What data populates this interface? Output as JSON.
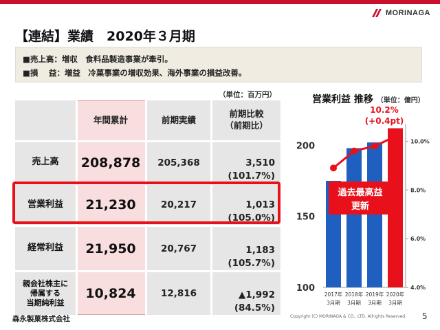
{
  "brand": {
    "logo_text": "MORINAGA",
    "accent_color": "#c8102e"
  },
  "slide": {
    "title": "【連結】業績　2020年３月期",
    "summary": [
      "■売上高：増収　食料品製造事業が牽引。",
      "■損　 益：増益　冷菓事業の増収効果、海外事業の損益改善。"
    ],
    "unit_label": "（単位：百万円）",
    "page_number": "5"
  },
  "table": {
    "headers": {
      "annual": "年間累計",
      "prev": "前期実績",
      "compare_line1": "前期比較",
      "compare_line2": "（前期比）"
    },
    "rows": [
      {
        "label": "売上高",
        "annual": "208,878",
        "prev": "205,368",
        "diff": "3,510",
        "ratio": "(101.7%)"
      },
      {
        "label": "営業利益",
        "annual": "21,230",
        "prev": "20,217",
        "diff": "1,013",
        "ratio": "(105.0%)"
      },
      {
        "label": "経常利益",
        "annual": "21,950",
        "prev": "20,767",
        "diff": "1,183",
        "ratio": "(105.7%)"
      },
      {
        "label_lines": [
          "親会社株主に",
          "帰属する",
          "当期純利益"
        ],
        "annual": "10,824",
        "prev": "12,816",
        "diff": "▲1,992",
        "ratio": "(84.5%)"
      }
    ]
  },
  "chart": {
    "title": "営業利益 推移",
    "unit": "（単位：億円）",
    "annotation_value": "10.2%",
    "annotation_delta": "(+0.4pt)",
    "banner_line1": "過去最高益",
    "banner_line2": "更新"
  },
  "chart_data": {
    "type": "bar",
    "categories": [
      [
        "2017年",
        "3月期"
      ],
      [
        "2018年",
        "3月期"
      ],
      [
        "2019年",
        "3月期"
      ],
      [
        "2020年",
        "3月期"
      ]
    ],
    "bar_values": [
      175,
      198,
      202,
      212
    ],
    "line_values": [
      8.9,
      9.6,
      9.8,
      10.2
    ],
    "bar_colors": [
      "#1f5fbf",
      "#1f5fbf",
      "#1f5fbf",
      "#e8111b"
    ],
    "line_color": "#e8111b",
    "ylim_left": [
      100,
      220
    ],
    "yticks_left": [
      100,
      150,
      200
    ],
    "ylim_right": [
      4.0,
      11.0
    ],
    "yticks_right": [
      4.0,
      6.0,
      8.0,
      10.0
    ],
    "yticks_right_labels": [
      "4.0%",
      "6.0%",
      "8.0%",
      "10.0%"
    ],
    "grid": false
  },
  "footer": {
    "company": "森永製菓株式会社",
    "copyright": "Copyright (C) MORINAGA & CO., LTD. Allrights Reserved."
  }
}
